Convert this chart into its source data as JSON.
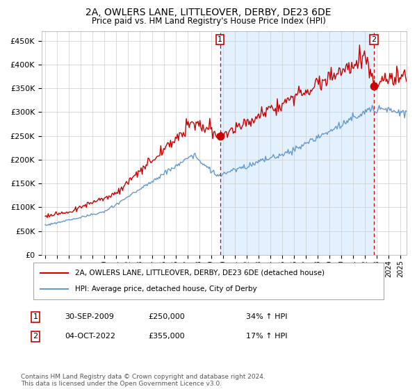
{
  "title": "2A, OWLERS LANE, LITTLEOVER, DERBY, DE23 6DE",
  "subtitle": "Price paid vs. HM Land Registry's House Price Index (HPI)",
  "hpi_label": "HPI: Average price, detached house, City of Derby",
  "property_label": "2A, OWLERS LANE, LITTLEOVER, DERBY, DE23 6DE (detached house)",
  "red_color": "#cc0000",
  "blue_color": "#6699cc",
  "background_color": "#ddeeff",
  "point1_date": "30-SEP-2009",
  "point1_price": 250000,
  "point1_hpi": "34% ↑ HPI",
  "point2_date": "04-OCT-2022",
  "point2_price": 355000,
  "point2_hpi": "17% ↑ HPI",
  "footer": "Contains HM Land Registry data © Crown copyright and database right 2024.\nThis data is licensed under the Open Government Licence v3.0.",
  "ylim": [
    0,
    470000
  ],
  "xlim_start": 1995,
  "xlim_end": 2025.5
}
